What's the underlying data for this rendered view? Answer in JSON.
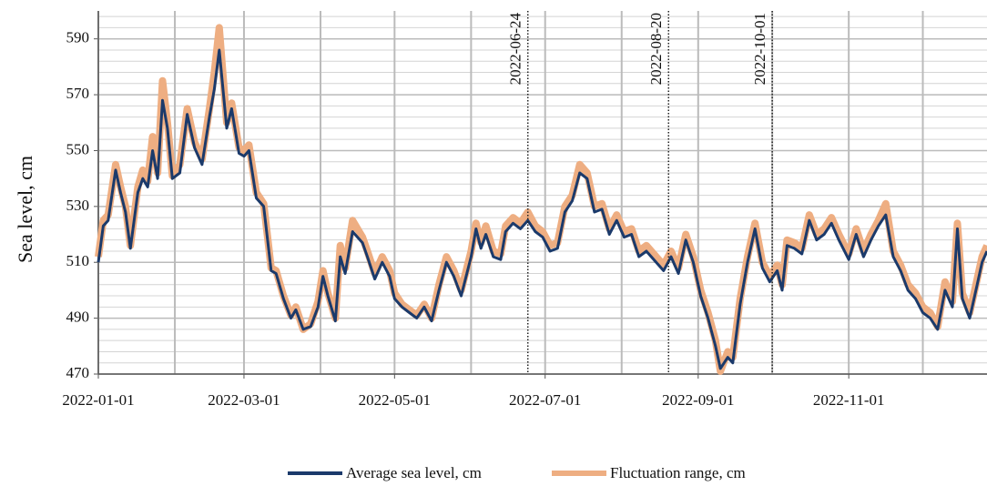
{
  "chart_data": {
    "type": "line",
    "y_label": "Sea level, cm",
    "x": [
      "2022-01-01",
      "2022-01-03",
      "2022-01-05",
      "2022-01-08",
      "2022-01-10",
      "2022-01-12",
      "2022-01-14",
      "2022-01-17",
      "2022-01-19",
      "2022-01-21",
      "2022-01-23",
      "2022-01-25",
      "2022-01-27",
      "2022-01-29",
      "2022-01-31",
      "2022-02-03",
      "2022-02-06",
      "2022-02-09",
      "2022-02-12",
      "2022-02-15",
      "2022-02-17",
      "2022-02-19",
      "2022-02-22",
      "2022-02-24",
      "2022-02-27",
      "2022-03-01",
      "2022-03-03",
      "2022-03-06",
      "2022-03-09",
      "2022-03-12",
      "2022-03-14",
      "2022-03-17",
      "2022-03-20",
      "2022-03-22",
      "2022-03-25",
      "2022-03-28",
      "2022-03-31",
      "2022-04-02",
      "2022-04-04",
      "2022-04-07",
      "2022-04-09",
      "2022-04-11",
      "2022-04-14",
      "2022-04-18",
      "2022-04-20",
      "2022-04-23",
      "2022-04-26",
      "2022-04-29",
      "2022-05-01",
      "2022-05-04",
      "2022-05-07",
      "2022-05-10",
      "2022-05-13",
      "2022-05-16",
      "2022-05-19",
      "2022-05-22",
      "2022-05-25",
      "2022-05-28",
      "2022-06-01",
      "2022-06-03",
      "2022-06-05",
      "2022-06-07",
      "2022-06-10",
      "2022-06-13",
      "2022-06-15",
      "2022-06-18",
      "2022-06-21",
      "2022-06-24",
      "2022-06-27",
      "2022-06-30",
      "2022-07-03",
      "2022-07-06",
      "2022-07-09",
      "2022-07-12",
      "2022-07-15",
      "2022-07-18",
      "2022-07-21",
      "2022-07-24",
      "2022-07-27",
      "2022-07-30",
      "2022-08-02",
      "2022-08-05",
      "2022-08-08",
      "2022-08-11",
      "2022-08-15",
      "2022-08-18",
      "2022-08-21",
      "2022-08-24",
      "2022-08-27",
      "2022-08-30",
      "2022-09-02",
      "2022-09-05",
      "2022-09-08",
      "2022-09-10",
      "2022-09-13",
      "2022-09-15",
      "2022-09-18",
      "2022-09-21",
      "2022-09-24",
      "2022-09-27",
      "2022-09-30",
      "2022-10-03",
      "2022-10-05",
      "2022-10-07",
      "2022-10-10",
      "2022-10-13",
      "2022-10-16",
      "2022-10-19",
      "2022-10-22",
      "2022-10-25",
      "2022-10-28",
      "2022-11-01",
      "2022-11-04",
      "2022-11-07",
      "2022-11-10",
      "2022-11-13",
      "2022-11-16",
      "2022-11-19",
      "2022-11-22",
      "2022-11-25",
      "2022-11-28",
      "2022-12-01",
      "2022-12-04",
      "2022-12-07",
      "2022-12-10",
      "2022-12-13",
      "2022-12-15",
      "2022-12-17",
      "2022-12-20",
      "2022-12-23",
      "2022-12-25",
      "2022-12-27"
    ],
    "series": [
      {
        "name": "Fluctuation range, cm",
        "color": "#eeae82",
        "width": 8,
        "values": [
          512,
          525,
          527,
          545,
          537,
          530,
          516,
          537,
          543,
          539,
          555,
          542,
          575,
          560,
          541,
          545,
          565,
          553,
          547,
          565,
          578,
          594,
          560,
          567,
          551,
          550,
          552,
          535,
          531,
          508,
          507,
          498,
          491,
          494,
          486,
          488,
          496,
          507,
          499,
          490,
          516,
          508,
          525,
          519,
          514,
          506,
          512,
          507,
          499,
          495,
          493,
          491,
          495,
          490,
          502,
          512,
          507,
          500,
          514,
          524,
          517,
          523,
          514,
          513,
          523,
          526,
          524,
          528,
          523,
          521,
          516,
          517,
          530,
          534,
          545,
          542,
          530,
          531,
          522,
          527,
          521,
          522,
          514,
          516,
          512,
          509,
          514,
          508,
          520,
          512,
          500,
          492,
          482,
          471,
          478,
          476,
          497,
          512,
          524,
          510,
          505,
          509,
          502,
          518,
          517,
          515,
          527,
          520,
          522,
          526,
          520,
          513,
          522,
          514,
          520,
          525,
          531,
          514,
          509,
          502,
          499,
          494,
          492,
          487,
          503,
          496,
          524,
          499,
          492,
          504,
          512,
          516
        ]
      },
      {
        "name": "Average sea level, cm",
        "color": "#1b3a6b",
        "width": 3,
        "values": [
          510,
          523,
          525,
          543,
          535,
          528,
          515,
          535,
          540,
          537,
          550,
          540,
          568,
          558,
          540,
          542,
          563,
          551,
          545,
          562,
          572,
          586,
          558,
          565,
          549,
          548,
          550,
          533,
          530,
          507,
          506,
          497,
          490,
          493,
          486,
          487,
          494,
          505,
          498,
          489,
          512,
          506,
          521,
          517,
          512,
          504,
          510,
          505,
          497,
          494,
          492,
          490,
          494,
          489,
          500,
          510,
          505,
          498,
          512,
          522,
          515,
          520,
          512,
          511,
          521,
          524,
          522,
          525,
          521,
          519,
          514,
          515,
          528,
          532,
          542,
          540,
          528,
          529,
          520,
          525,
          519,
          520,
          512,
          514,
          510,
          507,
          512,
          506,
          518,
          510,
          498,
          490,
          480,
          472,
          476,
          474,
          495,
          510,
          522,
          508,
          503,
          507,
          500,
          516,
          515,
          513,
          525,
          518,
          520,
          524,
          518,
          511,
          520,
          512,
          518,
          523,
          527,
          512,
          507,
          500,
          497,
          492,
          490,
          486,
          500,
          494,
          522,
          497,
          490,
          502,
          510,
          514
        ]
      }
    ],
    "xlim": [
      "2022-01-01",
      "2022-12-27"
    ],
    "xticks": [
      "2022-01-01",
      "2022-03-01",
      "2022-05-01",
      "2022-07-01",
      "2022-09-01",
      "2022-11-01"
    ],
    "xminorticks": [
      "2022-02-01",
      "2022-04-01",
      "2022-06-01",
      "2022-08-01",
      "2022-10-01",
      "2022-12-01"
    ],
    "ylim": [
      470,
      600
    ],
    "yticks": [
      470,
      490,
      510,
      530,
      550,
      570,
      590
    ],
    "y_minor_step": 4,
    "vlines": [
      "2022-06-24",
      "2022-08-20",
      "2022-10-01"
    ],
    "legend": "bottom",
    "grid": true
  }
}
